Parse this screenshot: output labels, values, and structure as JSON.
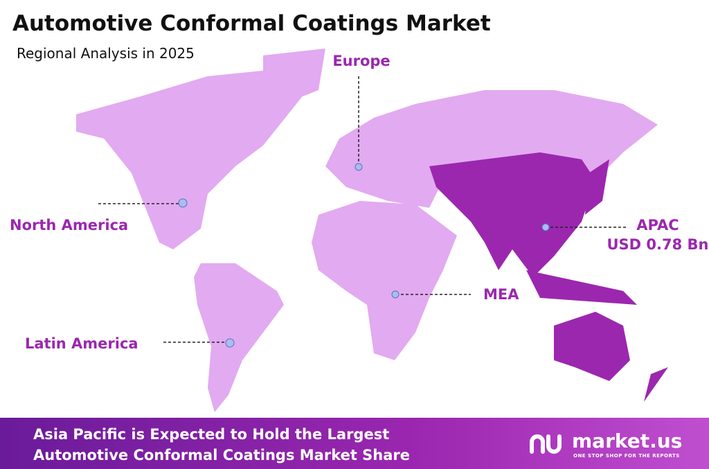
{
  "header": {
    "title": "Automotive Conformal Coatings Market",
    "subtitle": "Regional Analysis in 2025"
  },
  "regions": [
    {
      "label": "Europe"
    },
    {
      "label": "North America"
    },
    {
      "label": "APAC",
      "value_label": "USD 0.78 Bn"
    },
    {
      "label": "MEA"
    },
    {
      "label": "Latin America"
    }
  ],
  "footer": {
    "lines": [
      "Asia Pacific is Expected to Hold the Largest",
      "Automotive Conformal Coatings Market Share"
    ],
    "logo": "market.us",
    "tagline": "ONE STOP SHOP FOR THE REPORTS"
  }
}
